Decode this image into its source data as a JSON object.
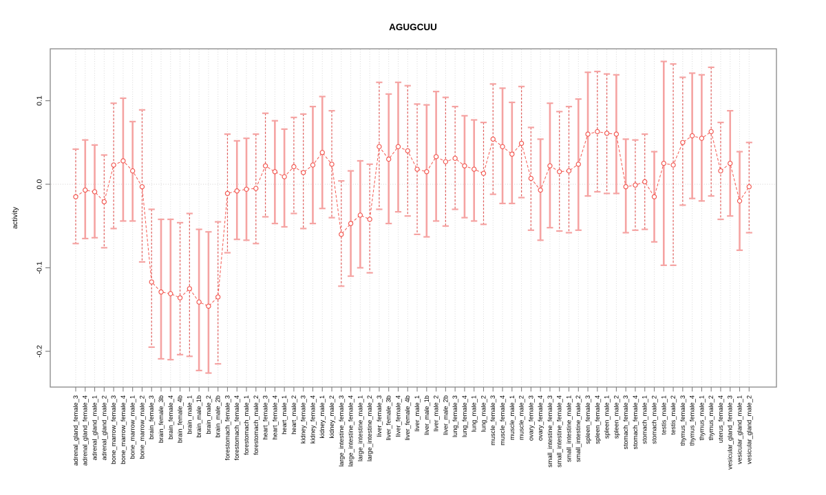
{
  "chart_data": {
    "type": "scatter",
    "subtype": "errorbar-plot",
    "title": "AGUGCUU",
    "xlabel": "",
    "ylabel": "activity",
    "ylim": [
      -0.243,
      0.162
    ],
    "yticks": [
      0.1,
      0.0,
      -0.1,
      -0.2
    ],
    "ytick_labels": [
      "0.1",
      "0.0",
      "-0.1",
      "-0.2"
    ],
    "grid": "dotted vertical line at every category; dotted horizontal line at y=0; full box frame",
    "legend": "none",
    "marker": "open-circle",
    "line_style": "dashed",
    "bar_style_pattern": [
      "dashed",
      "solid",
      "solid",
      "dashed"
    ],
    "colors": {
      "point": "#f2554e",
      "line": "#f55f57",
      "bar_solid": "#f5a3a2",
      "bar_dashed": "#e05c5a",
      "bar_cap": "#f5a3a2",
      "grid": "#d7d7d7",
      "zero_line": "#d0cccc",
      "box": "#8f8f8f",
      "tick": "#7f7f7f",
      "text": "#000000",
      "background": "#ffffff"
    },
    "categories": [
      "adrenal_gland_female_3",
      "adrenal_gland_female_4",
      "adrenal_gland_male_1",
      "adrenal_gland_male_2",
      "bone_marrow_female_3",
      "bone_marrow_female_4",
      "bone_marrow_male_1",
      "bone_marrow_male_2",
      "brain_female_3",
      "brain_female_3b",
      "brain_female_4",
      "brain_female_4b",
      "brain_male_1",
      "brain_male_1b",
      "brain_male_2",
      "brain_male_2b",
      "forestomach_female_3",
      "forestomach_female_4",
      "forestomach_male_1",
      "forestomach_male_2",
      "heart_female_3",
      "heart_female_4",
      "heart_male_1",
      "heart_male_2",
      "kidney_female_3",
      "kidney_female_4",
      "kidney_male_1",
      "kidney_male_2",
      "large_intestine_female_3",
      "large_intestine_female_4",
      "large_intestine_male_1",
      "large_intestine_male_2",
      "liver_female_3",
      "liver_female_3b",
      "liver_female_4",
      "liver_female_4b",
      "liver_male_1",
      "liver_male_1b",
      "liver_male_2",
      "liver_male_2b",
      "lung_female_3",
      "lung_female_4",
      "lung_male_1",
      "lung_male_2",
      "muscle_female_3",
      "muscle_female_4",
      "muscle_male_1",
      "muscle_male_2",
      "ovary_female_3",
      "ovary_female_4",
      "small_intestine_female_3",
      "small_intestine_female_4",
      "small_intestine_male_1",
      "small_intestine_male_2",
      "spleen_female_3",
      "spleen_female_4",
      "spleen_male_1",
      "spleen_male_2",
      "stomach_female_3",
      "stomach_female_4",
      "stomach_male_1",
      "stomach_male_2",
      "testis_male_1",
      "testis_male_2",
      "thymus_female_3",
      "thymus_female_4",
      "thymus_male_1",
      "thymus_male_2",
      "uterus_female_4",
      "vesicular_gland_female_3",
      "vesicular_gland_male_1",
      "vesicular_gland_male_2"
    ],
    "series": [
      {
        "name": "activity",
        "values": [
          -0.015,
          -0.007,
          -0.009,
          -0.021,
          0.023,
          0.028,
          0.016,
          -0.003,
          -0.117,
          -0.129,
          -0.131,
          -0.136,
          -0.125,
          -0.141,
          -0.146,
          -0.135,
          -0.011,
          -0.008,
          -0.006,
          -0.005,
          0.022,
          0.015,
          0.009,
          0.021,
          0.014,
          0.023,
          0.038,
          0.024,
          -0.06,
          -0.047,
          -0.037,
          -0.042,
          0.045,
          0.03,
          0.045,
          0.04,
          0.018,
          0.015,
          0.033,
          0.027,
          0.031,
          0.022,
          0.018,
          0.013,
          0.054,
          0.045,
          0.036,
          0.049,
          0.007,
          -0.007,
          0.022,
          0.015,
          0.016,
          0.024,
          0.06,
          0.063,
          0.061,
          0.06,
          -0.003,
          -0.001,
          0.003,
          -0.015,
          0.025,
          0.023,
          0.05,
          0.058,
          0.055,
          0.063,
          0.016,
          0.025,
          -0.02,
          -0.003
        ],
        "lower": [
          -0.071,
          -0.065,
          -0.064,
          -0.076,
          -0.053,
          -0.044,
          -0.044,
          -0.093,
          -0.195,
          -0.209,
          -0.21,
          -0.204,
          -0.206,
          -0.223,
          -0.226,
          -0.215,
          -0.082,
          -0.066,
          -0.067,
          -0.071,
          -0.039,
          -0.047,
          -0.051,
          -0.035,
          -0.053,
          -0.047,
          -0.029,
          -0.04,
          -0.122,
          -0.11,
          -0.1,
          -0.106,
          -0.03,
          -0.047,
          -0.033,
          -0.038,
          -0.06,
          -0.063,
          -0.044,
          -0.05,
          -0.03,
          -0.04,
          -0.044,
          -0.048,
          -0.012,
          -0.023,
          -0.023,
          -0.016,
          -0.055,
          -0.067,
          -0.052,
          -0.056,
          -0.058,
          -0.055,
          -0.014,
          -0.009,
          -0.011,
          -0.011,
          -0.058,
          -0.055,
          -0.054,
          -0.069,
          -0.097,
          -0.097,
          -0.025,
          -0.017,
          -0.02,
          -0.014,
          -0.042,
          -0.038,
          -0.079,
          -0.058
        ],
        "upper": [
          0.042,
          0.053,
          0.047,
          0.035,
          0.097,
          0.103,
          0.075,
          0.089,
          -0.03,
          -0.042,
          -0.042,
          -0.046,
          -0.035,
          -0.054,
          -0.057,
          -0.045,
          0.06,
          0.052,
          0.055,
          0.06,
          0.085,
          0.076,
          0.066,
          0.08,
          0.084,
          0.093,
          0.105,
          0.088,
          0.004,
          0.016,
          0.028,
          0.024,
          0.122,
          0.108,
          0.122,
          0.118,
          0.096,
          0.095,
          0.111,
          0.104,
          0.093,
          0.082,
          0.077,
          0.074,
          0.12,
          0.115,
          0.098,
          0.117,
          0.068,
          0.054,
          0.097,
          0.087,
          0.093,
          0.102,
          0.134,
          0.135,
          0.132,
          0.131,
          0.054,
          0.053,
          0.06,
          0.039,
          0.147,
          0.144,
          0.128,
          0.133,
          0.131,
          0.14,
          0.074,
          0.088,
          0.039,
          0.05
        ]
      }
    ]
  }
}
